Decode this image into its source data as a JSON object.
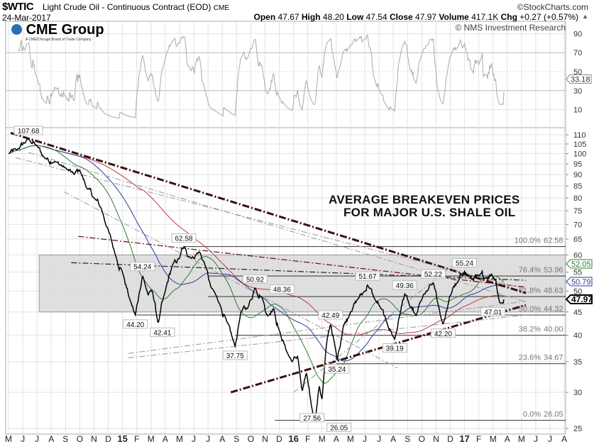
{
  "header": {
    "symbol": "$WTIC",
    "title": "Light Crude Oil - Continuous Contract (EOD)",
    "exchange": "CME",
    "date": "24-Mar-2017",
    "watermark": "©StockCharts.com",
    "open_label": "Open",
    "open": "47.67",
    "high_label": "High",
    "high": "48.20",
    "low_label": "Low",
    "low": "47.54",
    "close_label": "Close",
    "close": "47.97",
    "volume_label": "Volume",
    "volume": "417.1K",
    "chg_label": "Chg",
    "chg": "+0.27 (+0.57%)",
    "up_marker": "▲",
    "credit": "© NMS Investment Research",
    "logo_text": "CME Group",
    "logo_sub": "A CME/Chicago Board of Trade Company"
  },
  "overlay": {
    "line1": "AVERAGE BREAKEVEN PRICES",
    "line2": "FOR MAJOR U.S. SHALE OIL"
  },
  "colors": {
    "price": "#000000",
    "ma_fast": "#2e7d32",
    "ma_mid": "#2b3a9c",
    "ma_slow": "#c0394b",
    "trend": "#3a0f0f",
    "grid": "#e2e2e2",
    "band": "#d9d9d9"
  },
  "chart_data": {
    "type": "line",
    "title": "$WTIC Light Crude Oil - Continuous Contract (EOD)",
    "x_unit": "months since May 2014",
    "x_ticks": [
      "M",
      "J",
      "J",
      "A",
      "S",
      "O",
      "N",
      "D",
      "15",
      "F",
      "M",
      "A",
      "M",
      "J",
      "J",
      "A",
      "S",
      "O",
      "N",
      "D",
      "16",
      "F",
      "M",
      "A",
      "M",
      "J",
      "J",
      "A",
      "S",
      "O",
      "N",
      "D",
      "17",
      "F",
      "M",
      "A",
      "M",
      "J",
      "J",
      "A"
    ],
    "y_ticks": [
      110,
      105,
      100,
      95,
      90,
      85,
      80,
      75,
      70,
      65,
      60,
      55,
      50,
      45,
      40,
      35,
      30,
      25
    ],
    "ylim": [
      25,
      110
    ],
    "yscale": "log",
    "rsi_ticks": [
      90,
      70,
      50,
      30,
      10
    ],
    "rsi_last": "33.18",
    "price_anchors": [
      [
        0,
        100
      ],
      [
        0.6,
        102
      ],
      [
        1.4,
        107.68
      ],
      [
        2,
        104
      ],
      [
        2.5,
        98
      ],
      [
        3.3,
        96
      ],
      [
        4,
        93
      ],
      [
        4.6,
        90
      ],
      [
        5,
        92
      ],
      [
        5.5,
        84
      ],
      [
        6,
        80
      ],
      [
        6.5,
        76
      ],
      [
        7,
        68
      ],
      [
        7.5,
        60
      ],
      [
        8,
        55
      ],
      [
        8.5,
        48
      ],
      [
        8.9,
        44.2
      ],
      [
        9.2,
        50
      ],
      [
        9.4,
        54.24
      ],
      [
        9.8,
        49
      ],
      [
        10.1,
        50
      ],
      [
        10.5,
        42.41
      ],
      [
        11,
        50
      ],
      [
        11.5,
        57
      ],
      [
        12,
        59
      ],
      [
        12.3,
        62.58
      ],
      [
        12.8,
        59
      ],
      [
        13.4,
        61
      ],
      [
        13.8,
        57
      ],
      [
        14.2,
        51
      ],
      [
        14.8,
        47
      ],
      [
        15.3,
        43
      ],
      [
        15.9,
        37.75
      ],
      [
        16.3,
        45
      ],
      [
        16.8,
        46
      ],
      [
        17.3,
        50.92
      ],
      [
        17.8,
        48.36
      ],
      [
        18.2,
        44
      ],
      [
        18.6,
        46
      ],
      [
        19,
        41
      ],
      [
        19.5,
        37
      ],
      [
        19.9,
        35
      ],
      [
        20.3,
        36
      ],
      [
        20.6,
        30
      ],
      [
        20.9,
        33
      ],
      [
        21.3,
        27.56
      ],
      [
        21.5,
        26.05
      ],
      [
        21.8,
        31
      ],
      [
        22,
        29
      ],
      [
        22.3,
        38
      ],
      [
        22.6,
        42.49
      ],
      [
        22.9,
        38
      ],
      [
        23.05,
        35.24
      ],
      [
        23.5,
        42
      ],
      [
        24,
        45
      ],
      [
        24.5,
        48
      ],
      [
        25,
        50
      ],
      [
        25.2,
        51.67
      ],
      [
        25.7,
        48
      ],
      [
        26.1,
        46
      ],
      [
        26.5,
        43
      ],
      [
        27.1,
        39.19
      ],
      [
        27.5,
        45
      ],
      [
        27.8,
        49.36
      ],
      [
        28.2,
        46
      ],
      [
        28.6,
        44
      ],
      [
        29,
        48
      ],
      [
        29.4,
        50
      ],
      [
        29.8,
        52.22
      ],
      [
        30.2,
        46
      ],
      [
        30.5,
        42.2
      ],
      [
        30.8,
        46
      ],
      [
        31.2,
        51
      ],
      [
        31.5,
        52
      ],
      [
        32,
        55.24
      ],
      [
        32.5,
        53
      ],
      [
        33,
        54
      ],
      [
        33.5,
        53.5
      ],
      [
        33.9,
        54.5
      ],
      [
        34.2,
        53
      ],
      [
        34.4,
        48
      ],
      [
        34.6,
        47.01
      ],
      [
        34.8,
        47.97
      ]
    ],
    "pivot_labels": [
      {
        "m": 1.4,
        "v": "107.68",
        "pos": "above"
      },
      {
        "m": 9.4,
        "v": "54.24",
        "pos": "above"
      },
      {
        "m": 8.9,
        "v": "44.20",
        "pos": "below"
      },
      {
        "m": 10.5,
        "v": "42.41",
        "pos": "below"
      },
      {
        "m": 12.3,
        "v": "62.58",
        "pos": "above"
      },
      {
        "m": 15.9,
        "v": "37.75",
        "pos": "below"
      },
      {
        "m": 17.3,
        "v": "50.92",
        "pos": "above"
      },
      {
        "m": 17.8,
        "v": "48.36",
        "pos": "above"
      },
      {
        "m": 22.6,
        "v": "42.49",
        "pos": "above"
      },
      {
        "m": 23.05,
        "v": "35.24",
        "pos": "below"
      },
      {
        "m": 21.3,
        "v": "27.56",
        "pos": "below"
      },
      {
        "m": 21.5,
        "v": "26.05",
        "pos": "belowfar"
      },
      {
        "m": 25.2,
        "v": "51.67",
        "pos": "above"
      },
      {
        "m": 27.1,
        "v": "39.19",
        "pos": "below"
      },
      {
        "m": 27.8,
        "v": "49.36",
        "pos": "above"
      },
      {
        "m": 29.8,
        "v": "52.22",
        "pos": "above"
      },
      {
        "m": 30.5,
        "v": "42.20",
        "pos": "below"
      },
      {
        "m": 32,
        "v": "55.24",
        "pos": "above"
      },
      {
        "m": 34.6,
        "v": "47.01",
        "pos": "below"
      }
    ],
    "fib_levels": [
      {
        "pct": "100.0%",
        "v": 62.58,
        "label": "62.58",
        "from": 12.3
      },
      {
        "pct": "76.4%",
        "v": 53.96,
        "label": "53.96",
        "from": 14
      },
      {
        "pct": "61.8%",
        "v": 48.63,
        "label": "48.63",
        "from": 14
      },
      {
        "pct": "50.0%",
        "v": 44.32,
        "label": "44.32",
        "from": 9
      },
      {
        "pct": "38.2%",
        "v": 40.0,
        "label": "40.00",
        "from": 15.9
      },
      {
        "pct": "23.6%",
        "v": 34.67,
        "label": "34.67",
        "from": 23
      },
      {
        "pct": "0.0%",
        "v": 26.05,
        "label": "26.05",
        "from": 18.7
      }
    ],
    "band": {
      "low": 45,
      "high": 60,
      "from": 2.15,
      "to": 39.1
    },
    "trendlines": [
      {
        "a": [
          0.15,
          111
        ],
        "b": [
          36.3,
          49.5
        ],
        "style": "heavy"
      },
      {
        "a": [
          15.6,
          30.0
        ],
        "b": [
          36.3,
          46.6
        ],
        "style": "heavy"
      },
      {
        "a": [
          4.9,
          65.9
        ],
        "b": [
          36.3,
          51
        ],
        "style": "red"
      },
      {
        "a": [
          4.4,
          57.7
        ],
        "b": [
          36.3,
          52.8
        ],
        "style": "dark"
      },
      {
        "a": [
          1.4,
          100.6
        ],
        "b": [
          36.3,
          47.4
        ],
        "style": "gray"
      },
      {
        "a": [
          0.5,
          98
        ],
        "b": [
          36.3,
          50.5
        ],
        "style": "gray"
      },
      {
        "a": [
          3.9,
          82.5
        ],
        "b": [
          27.3,
          33.9
        ],
        "style": "gray"
      },
      {
        "a": [
          8.4,
          35.7
        ],
        "b": [
          36.3,
          44.3
        ],
        "style": "gray"
      },
      {
        "a": [
          8.4,
          36.5
        ],
        "b": [
          36.3,
          47.5
        ],
        "style": "gray"
      },
      {
        "a": [
          20,
          30
        ],
        "b": [
          31.5,
          58
        ],
        "style": "gray"
      }
    ],
    "last_values": [
      {
        "name": "ma_fast",
        "v": "52.05"
      },
      {
        "name": "ma_mid",
        "v": "50.79"
      },
      {
        "name": "close",
        "v": "47.97"
      }
    ]
  }
}
